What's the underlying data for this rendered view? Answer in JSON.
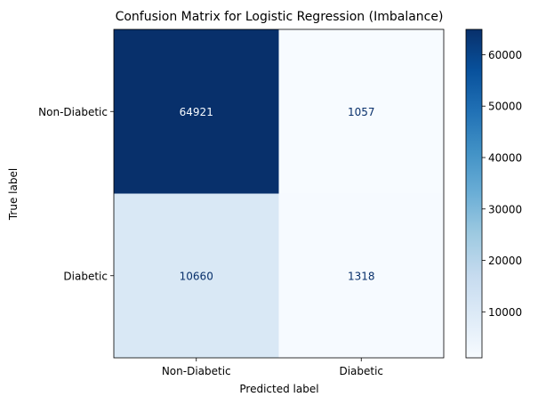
{
  "chart_data": {
    "type": "heatmap",
    "title": "Confusion Matrix for Logistic Regression (Imbalance)",
    "xlabel": "Predicted label",
    "ylabel": "True label",
    "x_categories": [
      "Non-Diabetic",
      "Diabetic"
    ],
    "y_categories": [
      "Non-Diabetic",
      "Diabetic"
    ],
    "values": [
      [
        64921,
        1057
      ],
      [
        10660,
        1318
      ]
    ],
    "colormap": "Blues",
    "color_range": [
      1057,
      64921
    ],
    "colorbar_ticks": [
      10000,
      20000,
      30000,
      40000,
      50000,
      60000
    ],
    "grid": false,
    "colors": {
      "low": "#f7fbff",
      "high": "#08306b",
      "light_text": "#f7fbff",
      "dark_text": "#08306b"
    }
  }
}
